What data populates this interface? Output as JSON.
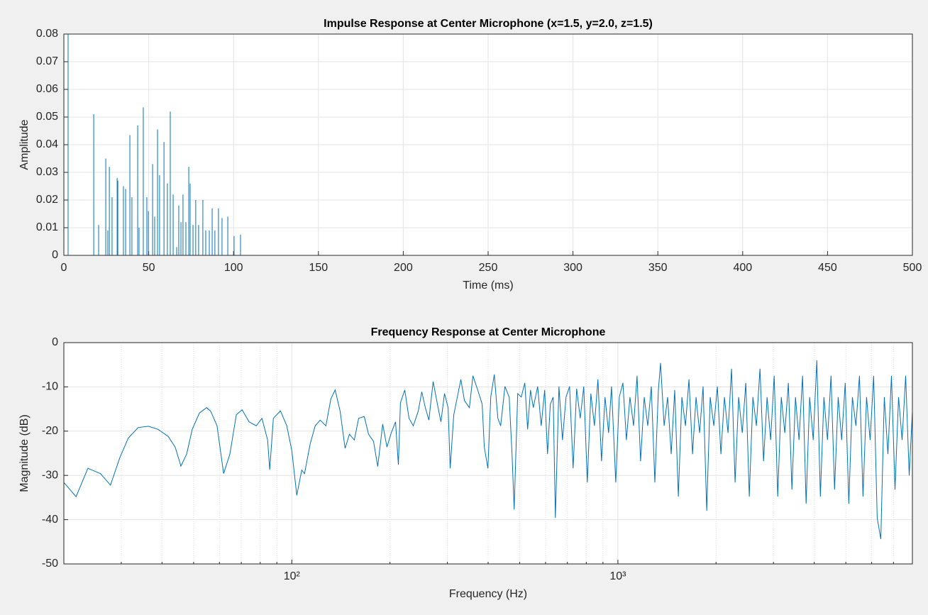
{
  "chart_data": [
    {
      "type": "impulse",
      "title": "Impulse Response at Center Microphone (x=1.5, y=2.0, z=1.5)",
      "xlabel": "Time (ms)",
      "ylabel": "Amplitude",
      "color": "#0072bd",
      "grid": true,
      "xscale": "linear",
      "xlim": [
        0,
        500
      ],
      "xticks": [
        0,
        50,
        100,
        150,
        200,
        250,
        300,
        350,
        400,
        450,
        500
      ],
      "ylim": [
        0,
        0.08
      ],
      "yticks": [
        0,
        0.01,
        0.02,
        0.03,
        0.04,
        0.05,
        0.06,
        0.07,
        0.08
      ],
      "x": [
        2.5,
        17.6,
        20.5,
        24.7,
        25.9,
        26.8,
        28.4,
        31.4,
        31.8,
        35.1,
        36.4,
        38.9,
        40.1,
        43.5,
        44.3,
        46.8,
        48.9,
        49.8,
        52.3,
        53.5,
        55.2,
        56.4,
        59.0,
        61.0,
        62.7,
        64.4,
        66.5,
        67.7,
        69.0,
        70.2,
        71.9,
        73.6,
        74.4,
        76.1,
        77.7,
        79.4,
        81.9,
        83.6,
        85.7,
        87.4,
        89.0,
        91.1,
        93.2,
        96.6,
        100.3,
        104.1
      ],
      "values": [
        0.08,
        0.051,
        0.011,
        0.035,
        0.009,
        0.032,
        0.021,
        0.028,
        0.027,
        0.025,
        0.024,
        0.0435,
        0.021,
        0.047,
        0.01,
        0.0535,
        0.021,
        0.016,
        0.033,
        0.014,
        0.0455,
        0.029,
        0.041,
        0.026,
        0.052,
        0.022,
        0.003,
        0.018,
        0.012,
        0.022,
        0.012,
        0.032,
        0.026,
        0.011,
        0.02,
        0.011,
        0.02,
        0.009,
        0.009,
        0.017,
        0.009,
        0.017,
        0.0135,
        0.014,
        0.007,
        0.0075
      ]
    },
    {
      "type": "line",
      "title": "Frequency Response at Center Microphone",
      "xlabel": "Frequency (Hz)",
      "ylabel": "Magnitude (dB)",
      "color": "#0072bd",
      "grid": true,
      "minor_grid": true,
      "xscale": "log",
      "xlim": [
        20,
        8000
      ],
      "xticks": [
        {
          "value": 100,
          "label": "10²"
        },
        {
          "value": 1000,
          "label": "10³"
        }
      ],
      "ylim": [
        -50,
        0
      ],
      "yticks": [
        -50,
        -40,
        -30,
        -20,
        -10,
        0
      ],
      "x": [
        20,
        21.8,
        23.7,
        25.9,
        27.8,
        29.7,
        31.5,
        33.8,
        36.3,
        38.9,
        41.8,
        43.9,
        45.7,
        47.6,
        49.5,
        52.1,
        54.8,
        56.4,
        59.0,
        61.8,
        64.6,
        67.6,
        70.4,
        74.0,
        77.8,
        81.0,
        84.3,
        85.6,
        87.8,
        92.3,
        96.5,
        100,
        103.6,
        107.3,
        109.4,
        113.9,
        118.0,
        122.2,
        127.2,
        131.8,
        135.8,
        140.7,
        145.7,
        150.2,
        155.5,
        160.3,
        166.8,
        172.0,
        178.1,
        183.5,
        190.0,
        195.8,
        201.8,
        208.0,
        212.2,
        215.4,
        222.0,
        228.8,
        235.8,
        244.2,
        250.4,
        256.8,
        263.3,
        271.3,
        279.6,
        286.7,
        294.0,
        301.5,
        306.0,
        313.8,
        321.8,
        330.0,
        338.4,
        350.5,
        359.4,
        370.4,
        383.6,
        389.4,
        399.3,
        407.4,
        417.8,
        428.4,
        437.1,
        450.5,
        464.2,
        473.6,
        480.8,
        493.0,
        505.5,
        518.3,
        528.8,
        539.5,
        550.4,
        567.3,
        581.7,
        596.4,
        608.5,
        620.8,
        633.3,
        643.0,
        659.3,
        676.1,
        693.2,
        710.8,
        728.8,
        747.3,
        766.3,
        785.7,
        805.6,
        826.1,
        847.1,
        868.6,
        890.6,
        913.3,
        936.3,
        955.9,
        985.1,
        1010,
        1036,
        1062,
        1089,
        1117,
        1145,
        1174,
        1204,
        1235,
        1266,
        1298,
        1331,
        1351,
        1386,
        1421,
        1457,
        1494,
        1532,
        1571,
        1611,
        1652,
        1694,
        1737,
        1781,
        1825,
        1872,
        1919,
        1968,
        2018,
        2070,
        2122,
        2176,
        2231,
        2288,
        2346,
        2406,
        2467,
        2529,
        2594,
        2659,
        2727,
        2796,
        2867,
        2940,
        3015,
        3091,
        3170,
        3250,
        3333,
        3417,
        3504,
        3593,
        3684,
        3778,
        3873,
        3972,
        4074,
        4177,
        4283,
        4392,
        4504,
        4618,
        4736,
        4856,
        4979,
        5106,
        5236,
        5368,
        5505,
        5645,
        5788,
        5935,
        6086,
        6241,
        6400,
        6561,
        6729,
        6900,
        7075,
        7255,
        7439,
        7628,
        7822,
        8000
      ],
      "values": [
        -31.6,
        -34.8,
        -28.4,
        -29.6,
        -32.2,
        -26.0,
        -21.6,
        -19.2,
        -18.9,
        -19.6,
        -21.2,
        -23.6,
        -27.9,
        -25.2,
        -19.6,
        -15.9,
        -14.7,
        -15.5,
        -18.8,
        -29.6,
        -25.2,
        -16.3,
        -15.2,
        -17.9,
        -18.8,
        -17.1,
        -22.0,
        -28.7,
        -17.1,
        -15.4,
        -18.8,
        -24.4,
        -34.5,
        -28.8,
        -29.6,
        -22.8,
        -18.8,
        -17.5,
        -18.8,
        -12.7,
        -10.7,
        -15.5,
        -23.9,
        -20.7,
        -22.0,
        -17.1,
        -16.7,
        -20.7,
        -22.3,
        -28.0,
        -18.4,
        -23.6,
        -20.4,
        -17.9,
        -27.6,
        -13.6,
        -10.7,
        -17.1,
        -18.8,
        -15.5,
        -11.1,
        -14.7,
        -17.5,
        -8.8,
        -13.9,
        -17.9,
        -11.5,
        -14.7,
        -28.4,
        -16.3,
        -12.3,
        -8.3,
        -13.1,
        -14.7,
        -7.5,
        -10.4,
        -13.9,
        -23.6,
        -28.4,
        -12.3,
        -7.2,
        -17.1,
        -18.8,
        -9.9,
        -12.3,
        -25.2,
        -37.7,
        -11.5,
        -12.3,
        -9.1,
        -19.6,
        -10.7,
        -14.7,
        -9.9,
        -18.8,
        -10.7,
        -25.2,
        -13.9,
        -12.3,
        -39.6,
        -9.9,
        -22.0,
        -12.3,
        -9.9,
        -28.4,
        -10.4,
        -17.1,
        -9.9,
        -31.6,
        -11.5,
        -18.8,
        -8.3,
        -26.8,
        -12.3,
        -20.4,
        -9.9,
        -31.6,
        -12.3,
        -9.1,
        -22.0,
        -12.3,
        -18.8,
        -7.5,
        -26.8,
        -12.3,
        -18.8,
        -9.9,
        -31.6,
        -10.7,
        -4.6,
        -18.8,
        -12.3,
        -25.2,
        -10.7,
        -34.8,
        -12.3,
        -18.8,
        -8.3,
        -25.2,
        -12.3,
        -20.4,
        -9.9,
        -38.0,
        -12.3,
        -18.8,
        -9.9,
        -25.2,
        -12.3,
        -20.4,
        -5.9,
        -31.6,
        -12.3,
        -20.4,
        -9.1,
        -34.8,
        -12.3,
        -18.8,
        -5.9,
        -26.8,
        -12.3,
        -22.0,
        -7.5,
        -34.8,
        -12.3,
        -20.4,
        -9.1,
        -33.2,
        -12.3,
        -22.0,
        -7.5,
        -36.4,
        -12.3,
        -22.0,
        -4.0,
        -34.8,
        -12.3,
        -22.0,
        -7.5,
        -33.2,
        -12.3,
        -22.0,
        -9.1,
        -36.4,
        -12.3,
        -18.8,
        -7.5,
        -34.8,
        -12.3,
        -22.0,
        -7.5,
        -39.6,
        -44.4,
        -12.3,
        -25.2,
        -7.5,
        -33.2,
        -12.3,
        -22.0,
        -7.5,
        -30.0,
        -15.5
      ]
    }
  ]
}
